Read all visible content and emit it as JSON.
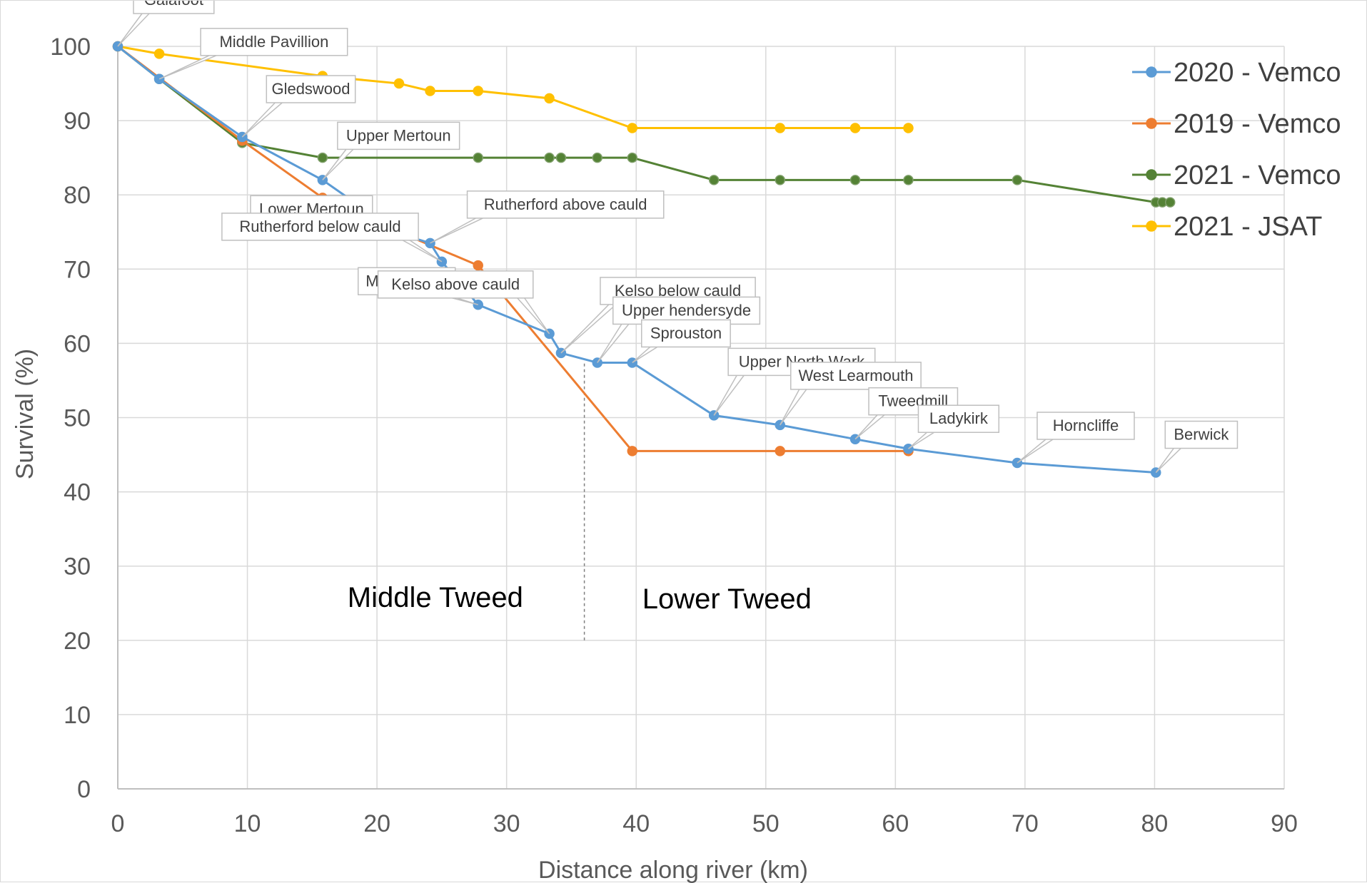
{
  "chart_data": {
    "type": "line",
    "xlabel": "Distance along river (km)",
    "ylabel": "Survival (%)",
    "xlim": [
      0,
      90
    ],
    "ylim": [
      0,
      100
    ],
    "x_ticks": [
      0,
      10,
      20,
      30,
      40,
      50,
      60,
      70,
      80,
      90
    ],
    "y_ticks": [
      0,
      10,
      20,
      30,
      40,
      50,
      60,
      70,
      80,
      90,
      100
    ],
    "grid": true,
    "legend_position": "top-right",
    "series": [
      {
        "name": "2020 - Vemco",
        "color": "#5b9bd5",
        "points": [
          [
            0,
            100
          ],
          [
            3.2,
            95.6
          ],
          [
            9.6,
            87.8
          ],
          [
            15.8,
            82.0
          ],
          [
            21.7,
            74.8
          ],
          [
            24.1,
            73.5
          ],
          [
            25.0,
            71.0
          ],
          [
            27.8,
            65.2
          ],
          [
            33.3,
            61.3
          ],
          [
            34.2,
            58.7
          ],
          [
            37.0,
            57.4
          ],
          [
            39.7,
            57.4
          ],
          [
            46.0,
            50.3
          ],
          [
            51.1,
            49.0
          ],
          [
            56.9,
            47.1
          ],
          [
            61.0,
            45.8
          ],
          [
            69.4,
            43.9
          ],
          [
            80.1,
            42.6
          ]
        ]
      },
      {
        "name": "2019 - Vemco",
        "color": "#ed7d31",
        "points": [
          [
            0,
            100
          ],
          [
            9.6,
            87.3
          ],
          [
            15.8,
            79.6
          ],
          [
            21.7,
            75.0
          ],
          [
            27.8,
            70.5
          ],
          [
            39.7,
            45.5
          ],
          [
            51.1,
            45.5
          ],
          [
            61.0,
            45.5
          ]
        ]
      },
      {
        "name": "2021 - Vemco",
        "color": "#548235",
        "points": [
          [
            0,
            100
          ],
          [
            3.2,
            95.6
          ],
          [
            9.6,
            87.0
          ],
          [
            15.8,
            85.0
          ],
          [
            27.8,
            85.0
          ],
          [
            33.3,
            85.0
          ],
          [
            34.2,
            85.0
          ],
          [
            37.0,
            85.0
          ],
          [
            39.7,
            85.0
          ],
          [
            46.0,
            82.0
          ],
          [
            51.1,
            82.0
          ],
          [
            56.9,
            82.0
          ],
          [
            61.0,
            82.0
          ],
          [
            69.4,
            82.0
          ],
          [
            80.1,
            79.0
          ],
          [
            80.6,
            79.0
          ],
          [
            81.2,
            79.0
          ]
        ]
      },
      {
        "name": "2021 - JSAT",
        "color": "#ffc000",
        "points": [
          [
            0,
            100
          ],
          [
            3.2,
            99.0
          ],
          [
            15.8,
            96.0
          ],
          [
            21.7,
            95.0
          ],
          [
            24.1,
            94.0
          ],
          [
            27.8,
            94.0
          ],
          [
            33.3,
            93.0
          ],
          [
            39.7,
            89.0
          ],
          [
            51.1,
            89.0
          ],
          [
            56.9,
            89.0
          ],
          [
            61.0,
            89.0
          ]
        ]
      }
    ],
    "station_labels": [
      {
        "text": "Galafoot",
        "x": 0,
        "y": 100
      },
      {
        "text": "Middle Pavillion",
        "x": 3.2,
        "y": 95.6
      },
      {
        "text": "Gledswood",
        "x": 9.6,
        "y": 87.8
      },
      {
        "text": "Upper Mertoun",
        "x": 15.8,
        "y": 82.0
      },
      {
        "text": "Rutherford above cauld",
        "x": 24.1,
        "y": 73.5
      },
      {
        "text": "Lower Mertoun",
        "x": 21.7,
        "y": 74.8
      },
      {
        "text": "Rutherford below cauld",
        "x": 25.0,
        "y": 71.0
      },
      {
        "text": "Kelso below cauld",
        "x": 34.2,
        "y": 58.7
      },
      {
        "text": "Upper hendersyde",
        "x": 37.0,
        "y": 57.4
      },
      {
        "text": "Sprouston",
        "x": 39.7,
        "y": 57.4
      },
      {
        "text": "Makerstoun",
        "x": 27.8,
        "y": 65.2
      },
      {
        "text": "Kelso above cauld",
        "x": 33.3,
        "y": 61.3
      },
      {
        "text": "Upper North Wark",
        "x": 46.0,
        "y": 50.3
      },
      {
        "text": "West Learmouth",
        "x": 51.1,
        "y": 49.0
      },
      {
        "text": "Tweedmill",
        "x": 56.9,
        "y": 47.1
      },
      {
        "text": "Ladykirk",
        "x": 61.0,
        "y": 45.8
      },
      {
        "text": "Horncliffe",
        "x": 69.4,
        "y": 43.9
      },
      {
        "text": "Berwick",
        "x": 80.1,
        "y": 42.6
      }
    ],
    "annotations": [
      {
        "text": "Middle Tweed",
        "x": 24.5,
        "y": 24.5
      },
      {
        "text": "Lower Tweed",
        "x": 47.0,
        "y": 24.3
      }
    ],
    "divider": {
      "x": 36,
      "y_from": 20,
      "y_to": 57.5
    }
  }
}
